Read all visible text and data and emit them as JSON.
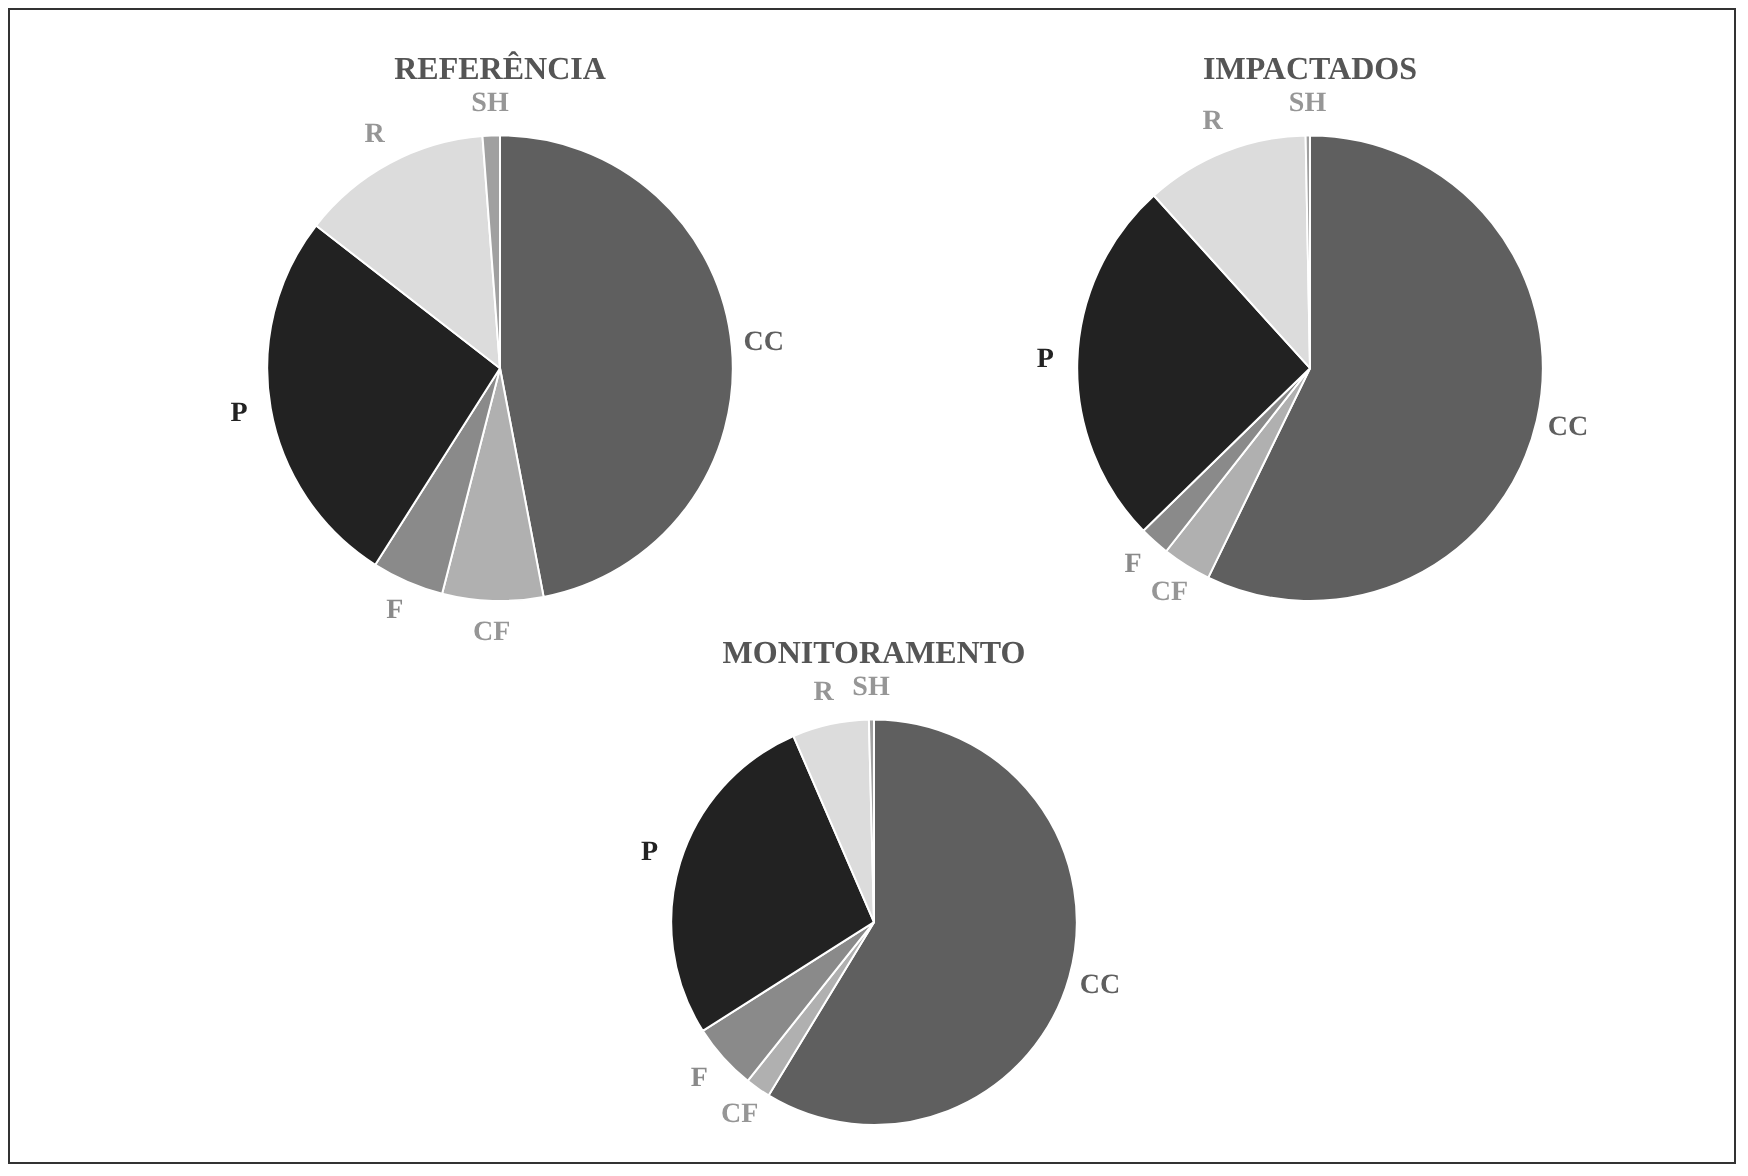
{
  "chart_data": [
    {
      "type": "pie",
      "title": "REFERÊNCIA",
      "categories": [
        "CC",
        "CF",
        "F",
        "P",
        "R",
        "SH"
      ],
      "values": [
        47,
        7,
        5,
        26.5,
        13.3,
        1.2
      ],
      "colors": [
        "#5f5f5f",
        "#b0b0b0",
        "#8a8a8a",
        "#222222",
        "#dcdcdc",
        "#a0a0a0"
      ]
    },
    {
      "type": "pie",
      "title": "IMPACTADOS",
      "categories": [
        "CC",
        "CF",
        "F",
        "P",
        "R",
        "SH"
      ],
      "values": [
        57.2,
        3.4,
        2.1,
        25.6,
        11.4,
        0.3
      ],
      "colors": [
        "#5f5f5f",
        "#b0b0b0",
        "#8a8a8a",
        "#222222",
        "#dcdcdc",
        "#a0a0a0"
      ]
    },
    {
      "type": "pie",
      "title": "MONITORAMENTO",
      "categories": [
        "CC",
        "CF",
        "F",
        "P",
        "R",
        "SH"
      ],
      "values": [
        58.7,
        2,
        5.3,
        27.5,
        6.1,
        0.4
      ],
      "colors": [
        "#5f5f5f",
        "#b0b0b0",
        "#8a8a8a",
        "#222222",
        "#dcdcdc",
        "#a0a0a0"
      ]
    }
  ]
}
